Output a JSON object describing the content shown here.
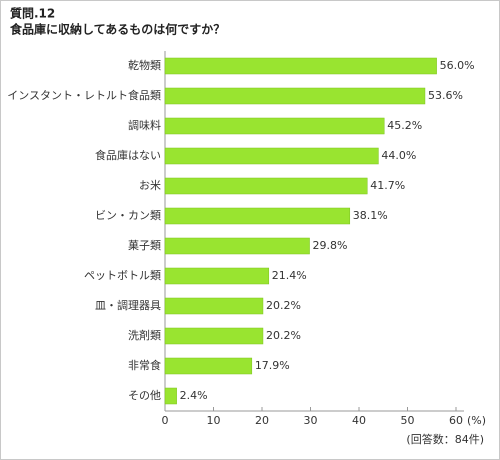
{
  "chart_data": {
    "type": "barh",
    "title": "質問.12",
    "subtitle": "食品庫に収納してあるものは何ですか？",
    "categories": [
      "乾物類",
      "インスタント・レトルト食品類",
      "調味料",
      "食品庫はない",
      "お米",
      "ビン・カン類",
      "菓子類",
      "ペットボトル類",
      "皿・調理器具",
      "洗剤類",
      "非常食",
      "その他"
    ],
    "values": [
      56.0,
      53.6,
      45.2,
      44.0,
      41.7,
      38.1,
      29.8,
      21.4,
      20.2,
      20.2,
      17.9,
      2.4
    ],
    "value_labels": [
      "56.0%",
      "53.6%",
      "45.2%",
      "44.0%",
      "41.7%",
      "38.1%",
      "29.8%",
      "21.4%",
      "20.2%",
      "20.2%",
      "17.9%",
      "2.4%"
    ],
    "color": "#99e430",
    "xlim": [
      0,
      60
    ],
    "xticks": [
      0,
      10,
      20,
      30,
      40,
      50,
      60
    ],
    "xlabel": "(%)",
    "note": "(回答数：84件)"
  }
}
